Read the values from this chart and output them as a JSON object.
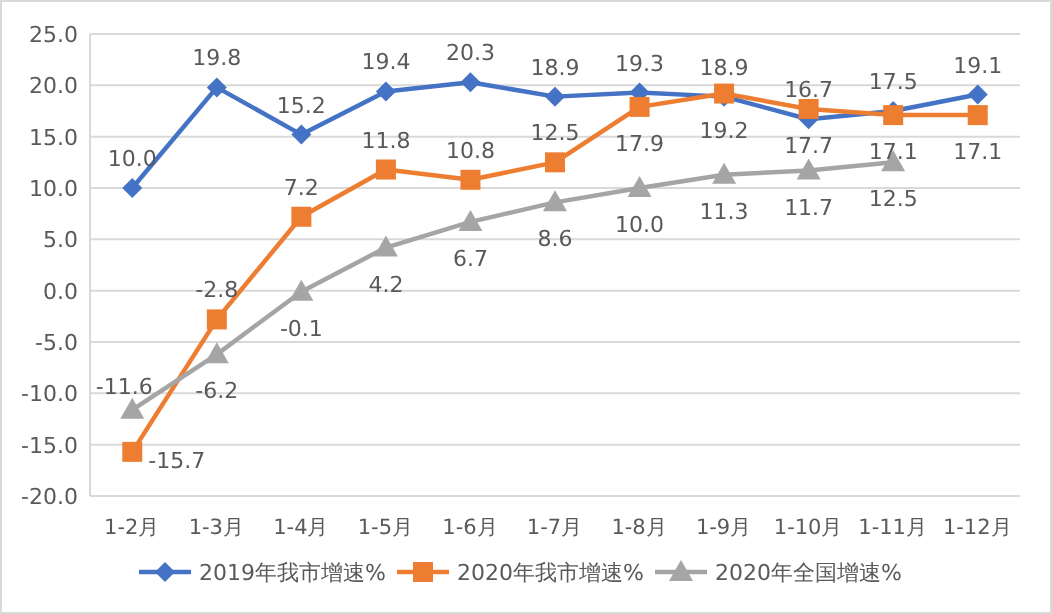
{
  "chart_data": {
    "type": "line",
    "categories": [
      "1-2月",
      "1-3月",
      "1-4月",
      "1-5月",
      "1-6月",
      "1-7月",
      "1-8月",
      "1-9月",
      "1-10月",
      "1-11月",
      "1-12月"
    ],
    "series": [
      {
        "name": "2019年我市增速%",
        "color": "#4472c4",
        "marker": "diamond",
        "values": [
          10.0,
          19.8,
          15.2,
          19.4,
          20.3,
          18.9,
          19.3,
          18.9,
          16.7,
          17.5,
          19.1
        ],
        "value_labels": [
          "10.0",
          "19.8",
          "15.2",
          "19.4",
          "20.3",
          "18.9",
          "19.3",
          "18.9",
          "16.7",
          "17.5",
          "19.1"
        ]
      },
      {
        "name": "2020年我市增速%",
        "color": "#ed7d31",
        "marker": "square",
        "values": [
          -15.7,
          -2.8,
          7.2,
          11.8,
          10.8,
          12.5,
          17.9,
          19.2,
          17.7,
          17.1,
          17.1
        ],
        "value_labels": [
          "-15.7",
          "-2.8",
          "7.2",
          "11.8",
          "10.8",
          "12.5",
          "17.9",
          "19.2",
          "17.7",
          "17.1",
          "17.1"
        ]
      },
      {
        "name": "2020年全国增速%",
        "color": "#a5a5a5",
        "marker": "triangle",
        "values": [
          -11.6,
          -6.2,
          -0.1,
          4.2,
          6.7,
          8.6,
          10.0,
          11.3,
          11.7,
          12.5,
          null
        ],
        "value_labels": [
          "-11.6",
          "-6.2",
          "-0.1",
          "4.2",
          "6.7",
          "8.6",
          "10.0",
          "11.3",
          "11.7",
          "12.5",
          null
        ]
      }
    ],
    "ylim": [
      -20,
      25
    ],
    "yticks": [
      {
        "value": -20,
        "label": "-20.0"
      },
      {
        "value": -15,
        "label": "-15.0"
      },
      {
        "value": -10,
        "label": "-10.0"
      },
      {
        "value": -5,
        "label": "-5.0"
      },
      {
        "value": 0,
        "label": "0.0"
      },
      {
        "value": 5,
        "label": "5.0"
      },
      {
        "value": 10,
        "label": "10.0"
      },
      {
        "value": 15,
        "label": "15.0"
      },
      {
        "value": 20,
        "label": "20.0"
      },
      {
        "value": 25,
        "label": "25.0"
      }
    ],
    "grid": "y",
    "legend": "bottom",
    "line_style": "solid"
  }
}
